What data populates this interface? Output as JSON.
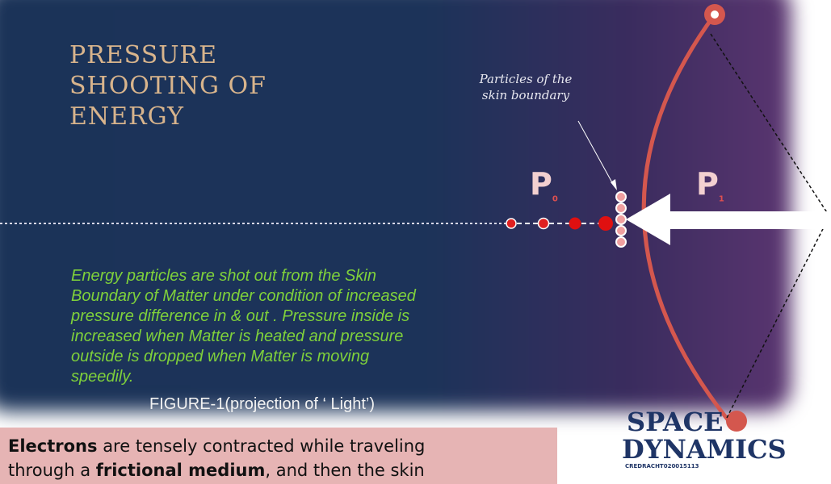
{
  "title": {
    "lines": [
      "PRESSURE",
      "SHOOTING  OF",
      "ENERGY"
    ]
  },
  "annotation": {
    "lines": [
      "Particles of the",
      "skin boundary"
    ]
  },
  "labels": {
    "inside": {
      "letter": "P",
      "sub": "0"
    },
    "outside": {
      "letter": "P",
      "sub": "1"
    }
  },
  "body": {
    "lines": [
      "Energy  particles are shot out  from the Skin",
      "Boundary of Matter  under condition of increased",
      "pressure difference in & out .  Pressure inside is",
      "increased when Matter is heated  and pressure",
      "outside is dropped when  Matter is moving",
      "speedily."
    ]
  },
  "caption": "FIGURE-1(projection of ‘ Light’)",
  "note": {
    "lines": [
      [
        {
          "text": "Electrons",
          "bold": true
        },
        {
          "text": " are tensely contracted while traveling",
          "bold": false
        }
      ],
      [
        {
          "text": "through a ",
          "bold": false
        },
        {
          "text": "frictional medium",
          "bold": true
        },
        {
          "text": ", and then the skin",
          "bold": false
        }
      ]
    ]
  },
  "logo": {
    "lines": [
      "SPACE",
      "DYNAMICS"
    ],
    "code": "CREDRACHT020015113"
  }
}
